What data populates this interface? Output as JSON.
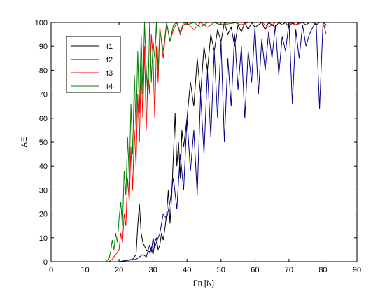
{
  "chart_data": {
    "type": "line",
    "xlabel": "Fn [N]",
    "ylabel": "AE",
    "xlim": [
      0,
      90
    ],
    "ylim": [
      0,
      100
    ],
    "xticks": [
      0,
      10,
      20,
      30,
      40,
      50,
      60,
      70,
      80,
      90
    ],
    "yticks": [
      0,
      10,
      20,
      30,
      40,
      50,
      60,
      70,
      80,
      90,
      100
    ],
    "grid": false,
    "legend_position": "top-left",
    "series": [
      {
        "name": "t1",
        "color": "#000000",
        "x": [
          0,
          10,
          20,
          24,
          25,
          25.5,
          26,
          26.5,
          27,
          28,
          29,
          29.5,
          30,
          30.5,
          31,
          31.5,
          32,
          32.5,
          33,
          33.5,
          34,
          34.5,
          35,
          35.5,
          36,
          36.5,
          37,
          37.5,
          38,
          38.5,
          39,
          40,
          41,
          42,
          43,
          44,
          45,
          46,
          47,
          48,
          49,
          50,
          51,
          52,
          53,
          54,
          55,
          56,
          57,
          58,
          59,
          60,
          61,
          62,
          63,
          64,
          65,
          66,
          67,
          68,
          69,
          70,
          71,
          72,
          73,
          74,
          75,
          76,
          77,
          78,
          79,
          80,
          81
        ],
        "y": [
          0,
          0,
          0,
          1,
          3,
          15,
          24,
          12,
          8,
          5,
          4,
          6,
          3,
          8,
          10,
          5,
          7,
          12,
          9,
          14,
          20,
          30,
          16,
          28,
          45,
          62,
          40,
          50,
          35,
          55,
          48,
          60,
          75,
          65,
          85,
          70,
          90,
          80,
          95,
          88,
          97,
          92,
          100,
          95,
          98,
          90,
          99,
          96,
          100,
          97,
          100,
          98,
          99,
          100,
          97,
          100,
          99,
          98,
          100,
          99,
          100,
          98,
          100,
          99,
          100,
          100,
          99,
          100,
          100,
          99,
          100,
          100,
          99
        ]
      },
      {
        "name": "t2",
        "color": "#00008b",
        "x": [
          0,
          10,
          20,
          25,
          26,
          27,
          28,
          29,
          29.5,
          30,
          30.5,
          31,
          32,
          33,
          34,
          35,
          36,
          37,
          38,
          39,
          40,
          41,
          42,
          43,
          44,
          45,
          46,
          47,
          48,
          49,
          50,
          51,
          52,
          53,
          54,
          55,
          56,
          57,
          58,
          59,
          60,
          61,
          62,
          63,
          64,
          65,
          66,
          67,
          68,
          69,
          70,
          71,
          72,
          73,
          74,
          75,
          76,
          77,
          78,
          79,
          80,
          81
        ],
        "y": [
          0,
          0,
          0,
          1,
          2,
          3,
          2,
          7,
          4,
          10,
          6,
          8,
          12,
          20,
          18,
          25,
          35,
          22,
          45,
          30,
          60,
          38,
          55,
          28,
          70,
          45,
          80,
          52,
          88,
          60,
          92,
          50,
          85,
          65,
          95,
          72,
          90,
          60,
          88,
          75,
          98,
          70,
          93,
          80,
          96,
          85,
          99,
          78,
          94,
          88,
          100,
          66,
          97,
          85,
          99,
          90,
          95,
          98,
          100,
          64,
          99,
          98
        ]
      },
      {
        "name": "t3",
        "color": "#ff0000",
        "x": [
          0,
          10,
          17,
          18,
          19,
          20,
          20.5,
          21,
          21.5,
          22,
          22.5,
          23,
          23.5,
          24,
          24.5,
          25,
          25.5,
          26,
          26.5,
          27,
          27.5,
          28,
          28.5,
          29,
          29.5,
          30,
          30.5,
          31,
          31.5,
          32,
          33,
          34,
          35,
          36,
          37,
          38,
          39,
          40,
          42,
          44,
          46,
          48,
          50,
          52,
          54,
          56,
          58,
          60,
          62,
          64,
          66,
          68,
          70,
          72,
          74,
          76,
          78,
          80,
          81
        ],
        "y": [
          0,
          0,
          0,
          1,
          3,
          5,
          12,
          8,
          20,
          15,
          35,
          25,
          48,
          30,
          55,
          40,
          70,
          50,
          82,
          60,
          90,
          55,
          80,
          70,
          95,
          85,
          60,
          90,
          75,
          98,
          85,
          100,
          92,
          97,
          100,
          95,
          99,
          100,
          97,
          100,
          98,
          100,
          99,
          100,
          100,
          99,
          100,
          100,
          100,
          98,
          100,
          100,
          100,
          99,
          100,
          100,
          100,
          100,
          95
        ]
      },
      {
        "name": "t4",
        "color": "#008000",
        "x": [
          0,
          10,
          16,
          17,
          17.5,
          18,
          18.5,
          19,
          19.5,
          20,
          20.5,
          21,
          21.5,
          22,
          22.5,
          23,
          23.5,
          24,
          24.5,
          25,
          25.5,
          26,
          26.5,
          27,
          27.5,
          28,
          28.5,
          29,
          29.5,
          30,
          30.5,
          31,
          31.5,
          32,
          33,
          34,
          35,
          36,
          37,
          38,
          39,
          40,
          42,
          44,
          46,
          48,
          50,
          55,
          60,
          70,
          80
        ],
        "y": [
          0,
          0,
          0,
          1,
          4,
          9,
          5,
          12,
          8,
          18,
          25,
          15,
          38,
          28,
          52,
          35,
          66,
          45,
          78,
          55,
          88,
          62,
          95,
          70,
          100,
          80,
          68,
          100,
          75,
          92,
          85,
          100,
          80,
          97,
          88,
          100,
          92,
          99,
          100,
          96,
          100,
          99,
          100,
          98,
          100,
          100,
          99,
          100,
          100,
          100,
          100
        ]
      }
    ]
  }
}
